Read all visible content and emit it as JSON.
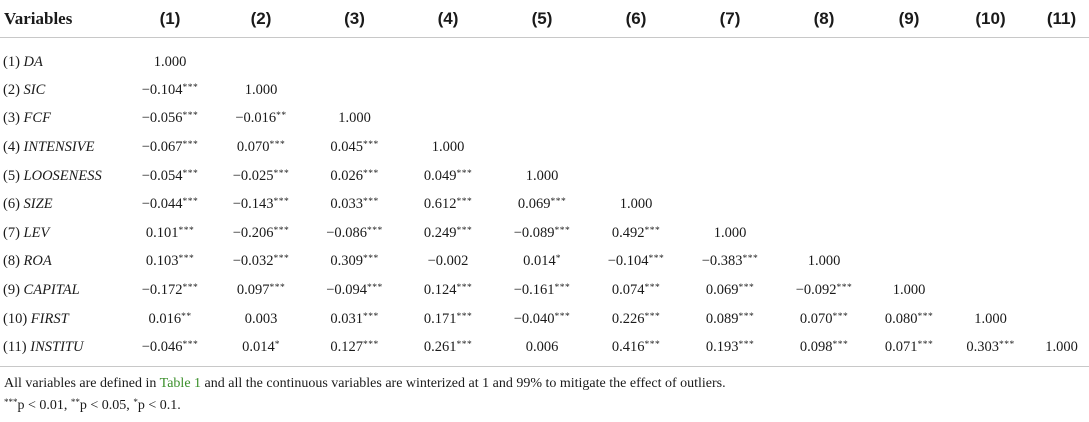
{
  "table": {
    "header": [
      "Variables",
      "(1)",
      "(2)",
      "(3)",
      "(4)",
      "(5)",
      "(6)",
      "(7)",
      "(8)",
      "(9)",
      "(10)",
      "(11)"
    ],
    "rows": [
      {
        "num": "(1)",
        "name": "DA",
        "cells": [
          [
            "1.000",
            ""
          ]
        ]
      },
      {
        "num": "(2)",
        "name": "SIC",
        "cells": [
          [
            "−0.104",
            "***"
          ],
          [
            "1.000",
            ""
          ]
        ]
      },
      {
        "num": "(3)",
        "name": "FCF",
        "cells": [
          [
            "−0.056",
            "***"
          ],
          [
            "−0.016",
            "**"
          ],
          [
            "1.000",
            ""
          ]
        ]
      },
      {
        "num": "(4)",
        "name": "INTENSIVE",
        "cells": [
          [
            "−0.067",
            "***"
          ],
          [
            "0.070",
            "***"
          ],
          [
            "0.045",
            "***"
          ],
          [
            "1.000",
            ""
          ]
        ]
      },
      {
        "num": "(5)",
        "name": "LOOSENESS",
        "cells": [
          [
            "−0.054",
            "***"
          ],
          [
            "−0.025",
            "***"
          ],
          [
            "0.026",
            "***"
          ],
          [
            "0.049",
            "***"
          ],
          [
            "1.000",
            ""
          ]
        ]
      },
      {
        "num": "(6)",
        "name": "SIZE",
        "cells": [
          [
            "−0.044",
            "***"
          ],
          [
            "−0.143",
            "***"
          ],
          [
            "0.033",
            "***"
          ],
          [
            "0.612",
            "***"
          ],
          [
            "0.069",
            "***"
          ],
          [
            "1.000",
            ""
          ]
        ]
      },
      {
        "num": "(7)",
        "name": "LEV",
        "cells": [
          [
            "0.101",
            "***"
          ],
          [
            "−0.206",
            "***"
          ],
          [
            "−0.086",
            "***"
          ],
          [
            "0.249",
            "***"
          ],
          [
            "−0.089",
            "***"
          ],
          [
            "0.492",
            "***"
          ],
          [
            "1.000",
            ""
          ]
        ]
      },
      {
        "num": "(8)",
        "name": "ROA",
        "cells": [
          [
            "0.103",
            "***"
          ],
          [
            "−0.032",
            "***"
          ],
          [
            "0.309",
            "***"
          ],
          [
            "−0.002",
            ""
          ],
          [
            "0.014",
            "*"
          ],
          [
            "−0.104",
            "***"
          ],
          [
            "−0.383",
            "***"
          ],
          [
            "1.000",
            ""
          ]
        ]
      },
      {
        "num": "(9)",
        "name": "CAPITAL",
        "cells": [
          [
            "−0.172",
            "***"
          ],
          [
            "0.097",
            "***"
          ],
          [
            "−0.094",
            "***"
          ],
          [
            "0.124",
            "***"
          ],
          [
            "−0.161",
            "***"
          ],
          [
            "0.074",
            "***"
          ],
          [
            "0.069",
            "***"
          ],
          [
            "−0.092",
            "***"
          ],
          [
            "1.000",
            ""
          ]
        ]
      },
      {
        "num": "(10)",
        "name": "FIRST",
        "cells": [
          [
            "0.016",
            "**"
          ],
          [
            "0.003",
            ""
          ],
          [
            "0.031",
            "***"
          ],
          [
            "0.171",
            "***"
          ],
          [
            "−0.040",
            "***"
          ],
          [
            "0.226",
            "***"
          ],
          [
            "0.089",
            "***"
          ],
          [
            "0.070",
            "***"
          ],
          [
            "0.080",
            "***"
          ],
          [
            "1.000",
            ""
          ]
        ]
      },
      {
        "num": "(11)",
        "name": "INSTITU",
        "cells": [
          [
            "−0.046",
            "***"
          ],
          [
            "0.014",
            "*"
          ],
          [
            "0.127",
            "***"
          ],
          [
            "0.261",
            "***"
          ],
          [
            "0.006",
            ""
          ],
          [
            "0.416",
            "***"
          ],
          [
            "0.193",
            "***"
          ],
          [
            "0.098",
            "***"
          ],
          [
            "0.071",
            "***"
          ],
          [
            "0.303",
            "***"
          ],
          [
            "1.000",
            ""
          ]
        ]
      }
    ]
  },
  "notes": {
    "line1_before": "All variables are defined in ",
    "line1_link": "Table 1",
    "line1_after": " and all the continuous variables are winterized at 1 and 99% to mitigate the effect of outliers.",
    "sig3": "***",
    "sig3_text": "p < 0.01, ",
    "sig2": "**",
    "sig2_text": "p < 0.05, ",
    "sig1": "*",
    "sig1_text": "p < 0.1."
  },
  "colors": {
    "link": "#3a8f2a",
    "rule": "#c8c8c8"
  }
}
